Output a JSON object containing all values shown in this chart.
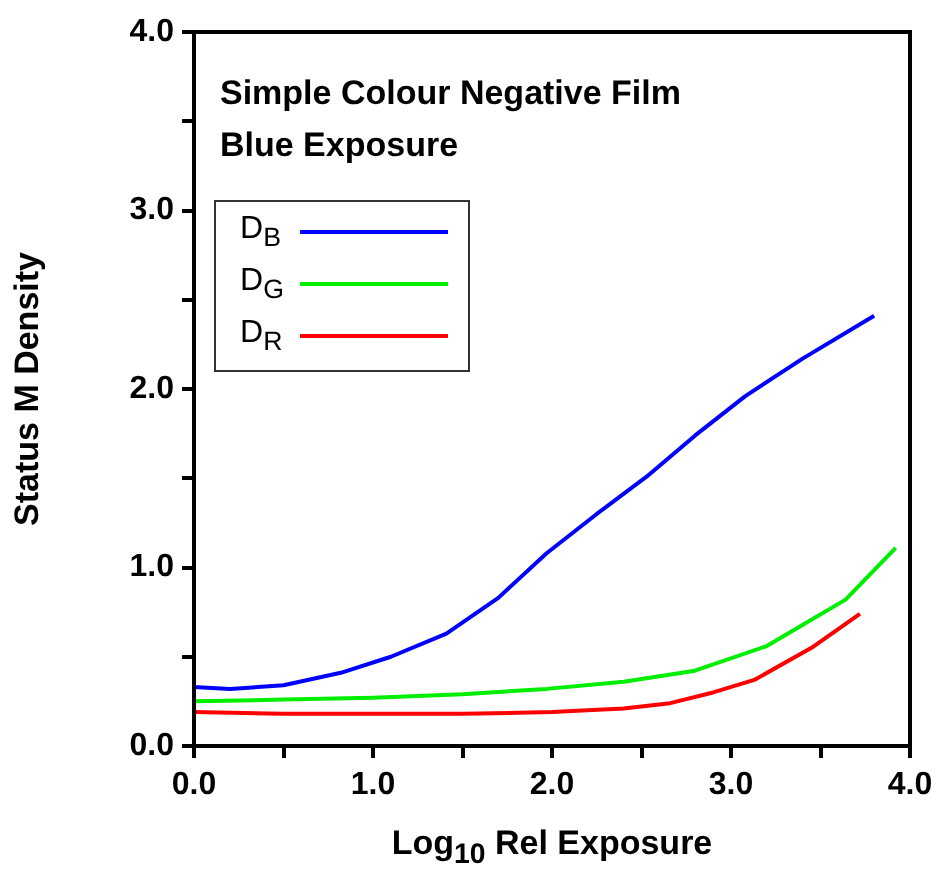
{
  "chart_data": {
    "type": "line",
    "title": "Simple Colour Negative Film",
    "subtitle": "Blue Exposure",
    "xlabel": "Log$_{10}$ Rel Exposure",
    "ylabel": "Status M Density",
    "xlim": [
      0,
      4
    ],
    "ylim": [
      0,
      4
    ],
    "xticks": [
      {
        "value": 0,
        "label": "0.0"
      },
      {
        "value": 0.5,
        "label": null
      },
      {
        "value": 1,
        "label": "1.0"
      },
      {
        "value": 1.5,
        "label": null
      },
      {
        "value": 2,
        "label": "2.0"
      },
      {
        "value": 2.5,
        "label": null
      },
      {
        "value": 3,
        "label": "3.0"
      },
      {
        "value": 3.5,
        "label": null
      },
      {
        "value": 4,
        "label": "4.0"
      }
    ],
    "yticks": [
      {
        "value": 0,
        "label": "0.0"
      },
      {
        "value": 0.5,
        "label": null
      },
      {
        "value": 1,
        "label": "1.0"
      },
      {
        "value": 1.5,
        "label": null
      },
      {
        "value": 2,
        "label": "2.0"
      },
      {
        "value": 2.5,
        "label": null
      },
      {
        "value": 3,
        "label": "3.0"
      },
      {
        "value": 3.5,
        "label": null
      },
      {
        "value": 4,
        "label": "4.0"
      }
    ],
    "legend": "top left",
    "grid": false,
    "marker": "none",
    "line_style": "solid",
    "series": [
      {
        "name": "D$_{B}$",
        "color": "#0000ff",
        "x": [
          0,
          0.2,
          0.5,
          0.82,
          1.1,
          1.41,
          1.7,
          1.97,
          2.25,
          2.53,
          2.8,
          3.08,
          3.4,
          3.8
        ],
        "values": [
          0.33,
          0.32,
          0.34,
          0.41,
          0.5,
          0.63,
          0.83,
          1.08,
          1.3,
          1.51,
          1.74,
          1.96,
          2.17,
          2.41
        ]
      },
      {
        "name": "D$_{G}$",
        "color": "#00ee00",
        "x": [
          0,
          0.5,
          1,
          1.5,
          1.97,
          2.4,
          2.79,
          3.2,
          3.64,
          3.92
        ],
        "values": [
          0.25,
          0.26,
          0.27,
          0.29,
          0.32,
          0.36,
          0.42,
          0.56,
          0.82,
          1.11
        ]
      },
      {
        "name": "D$_{R}$",
        "color": "#ff0000",
        "x": [
          0,
          0.5,
          1,
          1.5,
          2,
          2.4,
          2.66,
          2.9,
          3.13,
          3.45,
          3.72
        ],
        "values": [
          0.19,
          0.18,
          0.18,
          0.18,
          0.19,
          0.21,
          0.24,
          0.3,
          0.37,
          0.55,
          0.74
        ]
      }
    ]
  }
}
